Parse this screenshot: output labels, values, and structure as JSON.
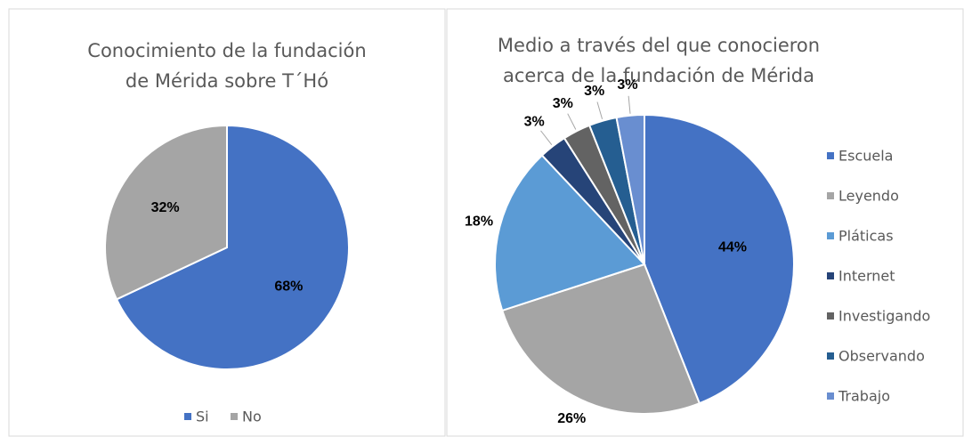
{
  "chart_data": [
    {
      "type": "pie",
      "title": [
        "Conocimiento de la fundación",
        "de Mérida sobre T´Hó"
      ],
      "categories": [
        "Si",
        "No"
      ],
      "values": [
        68,
        32
      ],
      "value_labels": [
        "68%",
        "32%"
      ],
      "colors": [
        "#4472c4",
        "#a5a5a5"
      ],
      "legend": "bottom"
    },
    {
      "type": "pie",
      "title": [
        "Medio a través del que conocieron",
        "acerca de la fundación de Mérida"
      ],
      "categories": [
        "Escuela",
        "Leyendo",
        "Pláticas",
        "Internet",
        "Investigando",
        "Observando",
        "Trabajo"
      ],
      "values": [
        44,
        26,
        18,
        3,
        3,
        3,
        3
      ],
      "value_labels": [
        "44%",
        "26%",
        "18%",
        "3%",
        "3%",
        "3%",
        "3%"
      ],
      "colors": [
        "#4472c4",
        "#a5a5a5",
        "#5b9bd5",
        "#264478",
        "#636363",
        "#255e91",
        "#698ed0"
      ],
      "legend": "right"
    }
  ]
}
